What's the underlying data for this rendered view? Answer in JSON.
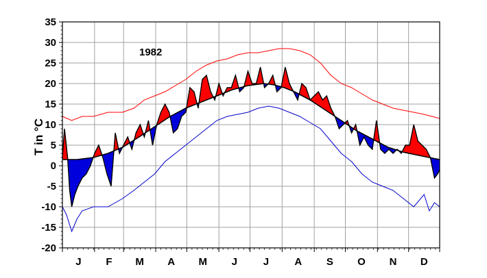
{
  "chart_data": {
    "type": "area",
    "title": "",
    "annotation": "1982",
    "xlabel": "",
    "ylabel": "T in °C",
    "x_range_days": [
      1,
      365
    ],
    "ylim": [
      -20,
      35
    ],
    "yticks": [
      35,
      30,
      25,
      20,
      15,
      10,
      5,
      0,
      -5,
      -10,
      -15,
      -20
    ],
    "grid": true,
    "legend": "none",
    "months": [
      "J",
      "F",
      "M",
      "A",
      "M",
      "J",
      "J",
      "A",
      "S",
      "O",
      "N",
      "D"
    ],
    "colors": {
      "record_max": "#ff0000",
      "record_min": "#0000cc",
      "above_normal_fill": "#ff0000",
      "below_normal_fill": "#0000dd",
      "observed": "#000000",
      "normal": "#000000",
      "grid": "#a0a0a0"
    },
    "series": [
      {
        "role": "record_max",
        "x": [
          1,
          10,
          20,
          31,
          45,
          59,
          70,
          80,
          90,
          100,
          110,
          120,
          130,
          140,
          150,
          160,
          170,
          180,
          190,
          200,
          210,
          220,
          230,
          240,
          250,
          260,
          270,
          280,
          290,
          300,
          310,
          320,
          330,
          340,
          350,
          365
        ],
        "values": [
          12,
          11,
          12,
          12,
          13,
          13,
          14,
          16,
          17,
          18,
          19.5,
          21,
          23,
          24.5,
          25.5,
          26,
          27,
          27.5,
          27.5,
          28,
          28.5,
          28.5,
          28,
          27,
          25,
          22,
          20,
          19,
          17.5,
          16,
          15,
          14,
          13.5,
          13,
          12.5,
          11.5
        ]
      },
      {
        "role": "record_min",
        "x": [
          1,
          5,
          10,
          15,
          20,
          31,
          45,
          59,
          70,
          80,
          90,
          100,
          110,
          120,
          130,
          140,
          150,
          160,
          170,
          180,
          190,
          200,
          210,
          220,
          230,
          240,
          250,
          260,
          270,
          280,
          290,
          300,
          310,
          320,
          330,
          340,
          350,
          355,
          360,
          365
        ],
        "values": [
          -10,
          -12,
          -16,
          -13,
          -11,
          -10,
          -10,
          -8,
          -6,
          -4,
          -2,
          1,
          3,
          5,
          7,
          9,
          11,
          12,
          12.5,
          13,
          14,
          14.5,
          14,
          13,
          12,
          10.5,
          9,
          6,
          3,
          1,
          -2,
          -4,
          -5,
          -6,
          -8,
          -10,
          -7,
          -11,
          -9,
          -10
        ]
      },
      {
        "role": "observed",
        "x": [
          1,
          3,
          6,
          8,
          10,
          13,
          16,
          20,
          24,
          28,
          32,
          36,
          40,
          44,
          48,
          52,
          56,
          60,
          64,
          68,
          72,
          76,
          80,
          84,
          88,
          92,
          96,
          100,
          104,
          108,
          112,
          116,
          120,
          124,
          128,
          132,
          136,
          140,
          144,
          148,
          152,
          156,
          160,
          164,
          168,
          172,
          176,
          180,
          184,
          188,
          192,
          196,
          200,
          204,
          208,
          212,
          216,
          220,
          224,
          228,
          232,
          236,
          240,
          244,
          248,
          252,
          256,
          260,
          264,
          268,
          272,
          276,
          280,
          284,
          288,
          292,
          296,
          300,
          304,
          308,
          312,
          316,
          320,
          324,
          328,
          332,
          336,
          340,
          344,
          348,
          352,
          356,
          360,
          363,
          365
        ],
        "values": [
          2,
          9,
          2,
          -6,
          -10,
          -7,
          -5,
          -3,
          -2,
          0,
          3,
          5,
          2,
          -2,
          -5,
          8,
          3,
          5,
          7,
          4,
          8,
          10,
          7,
          11,
          5,
          10,
          13,
          15,
          13,
          8,
          9,
          12,
          13,
          19,
          18,
          14,
          21,
          22,
          18,
          16,
          20,
          17,
          19,
          19,
          22,
          18,
          19,
          23,
          20,
          20,
          24,
          19,
          20,
          22,
          18,
          19,
          24,
          20,
          18,
          16,
          20,
          19,
          16,
          17,
          18,
          16,
          17,
          14,
          12,
          9,
          10,
          11,
          8,
          10,
          5,
          7,
          5,
          4,
          11,
          4,
          3,
          4,
          3,
          4,
          3,
          5,
          5,
          10,
          6,
          5,
          4,
          2,
          -3,
          -2,
          -1
        ]
      },
      {
        "role": "normal",
        "x": [
          1,
          15,
          31,
          45,
          59,
          75,
          90,
          105,
          120,
          135,
          150,
          165,
          180,
          195,
          205,
          215,
          225,
          240,
          255,
          270,
          285,
          300,
          315,
          330,
          345,
          355,
          365
        ],
        "values": [
          1.5,
          1.5,
          2,
          3,
          4.5,
          7,
          9.5,
          12,
          14,
          15.5,
          17,
          18.5,
          19.5,
          20,
          19.7,
          19,
          18,
          16,
          13.5,
          11,
          8.5,
          6.5,
          4.5,
          3.3,
          2.5,
          2,
          1.5
        ]
      }
    ]
  }
}
